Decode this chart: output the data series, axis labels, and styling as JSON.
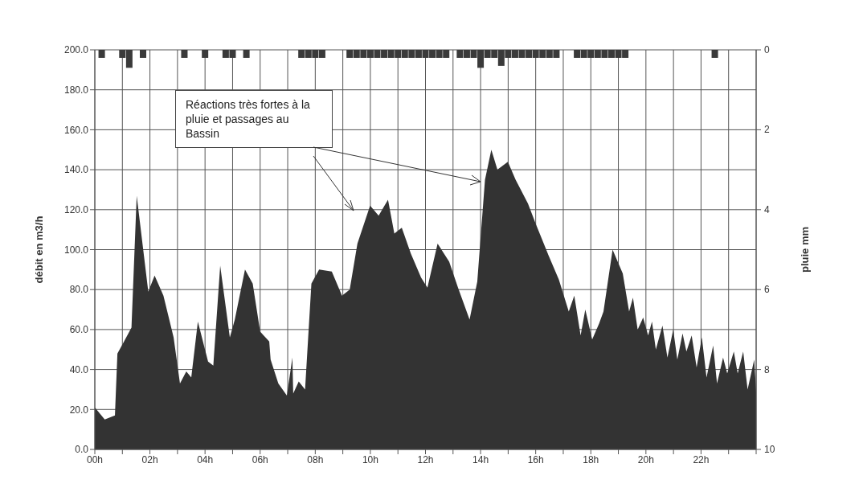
{
  "chart_data": {
    "type": "area",
    "ylabel": "débit en m3/h",
    "y2label": "pluie mm",
    "annotations": [
      "Réactions très fortes à la pluie et passages au Bassin"
    ],
    "xlim": [
      0,
      24
    ],
    "xticks": [
      {
        "value": 0,
        "label": "00h"
      },
      {
        "value": 1,
        "label": null
      },
      {
        "value": 2,
        "label": "02h"
      },
      {
        "value": 3,
        "label": null
      },
      {
        "value": 4,
        "label": "04h"
      },
      {
        "value": 5,
        "label": null
      },
      {
        "value": 6,
        "label": "06h"
      },
      {
        "value": 7,
        "label": null
      },
      {
        "value": 8,
        "label": "08h"
      },
      {
        "value": 9,
        "label": null
      },
      {
        "value": 10,
        "label": "10h"
      },
      {
        "value": 11,
        "label": null
      },
      {
        "value": 12,
        "label": "12h"
      },
      {
        "value": 13,
        "label": null
      },
      {
        "value": 14,
        "label": "14h"
      },
      {
        "value": 15,
        "label": null
      },
      {
        "value": 16,
        "label": "16h"
      },
      {
        "value": 17,
        "label": null
      },
      {
        "value": 18,
        "label": "18h"
      },
      {
        "value": 19,
        "label": null
      },
      {
        "value": 20,
        "label": "20h"
      },
      {
        "value": 21,
        "label": null
      },
      {
        "value": 22,
        "label": "22h"
      },
      {
        "value": 23,
        "label": null
      },
      {
        "value": 24,
        "label": null
      }
    ],
    "ylim": [
      0,
      200
    ],
    "yticks": [
      {
        "value": 0,
        "label": "0.0"
      },
      {
        "value": 20,
        "label": "20.0"
      },
      {
        "value": 40,
        "label": "40.0"
      },
      {
        "value": 60,
        "label": "60.0"
      },
      {
        "value": 80,
        "label": "80.0"
      },
      {
        "value": 100,
        "label": "100.0"
      },
      {
        "value": 120,
        "label": "120.0"
      },
      {
        "value": 140,
        "label": "140.0"
      },
      {
        "value": 160,
        "label": "160.0"
      },
      {
        "value": 180,
        "label": "180.0"
      },
      {
        "value": 200,
        "label": "200.0"
      }
    ],
    "y2lim": [
      10,
      0
    ],
    "y2ticks": [
      0,
      2,
      4,
      6,
      8,
      10
    ],
    "grid": true,
    "series": [
      {
        "color": "#333333",
        "x": [
          0,
          0.36,
          0.73,
          0.82,
          1.06,
          1.33,
          1.52,
          1.94,
          2.17,
          2.49,
          2.86,
          3.09,
          3.32,
          3.5,
          3.74,
          4.11,
          4.3,
          4.55,
          4.9,
          5.08,
          5.45,
          5.73,
          6.0,
          6.33,
          6.38,
          6.66,
          6.97,
          7.17,
          7.2,
          7.4,
          7.63,
          7.86,
          8.14,
          8.6,
          8.97,
          9.25,
          9.53,
          9.99,
          10.3,
          10.64,
          10.87,
          11.14,
          11.47,
          11.84,
          12.07,
          12.44,
          12.86,
          13.18,
          13.6,
          13.88,
          14.16,
          14.39,
          14.61,
          14.99,
          15.27,
          15.72,
          16.0,
          16.47,
          16.84,
          17.2,
          17.4,
          17.63,
          17.8,
          18.05,
          18.3,
          18.46,
          18.79,
          19.16,
          19.39,
          19.53,
          19.7,
          19.9,
          20.08,
          20.22,
          20.36,
          20.6,
          20.78,
          20.99,
          21.14,
          21.33,
          21.47,
          21.66,
          21.84,
          22.03,
          22.2,
          22.44,
          22.58,
          22.8,
          22.95,
          23.19,
          23.33,
          23.53,
          23.69,
          23.93,
          24
        ],
        "values": [
          21,
          15,
          17,
          48,
          54,
          61,
          127,
          79,
          87,
          77,
          56,
          33,
          39,
          36,
          64,
          44,
          42,
          92,
          56,
          65,
          90,
          83,
          59,
          54,
          45,
          33,
          27,
          46,
          28,
          34,
          30,
          83,
          90,
          89,
          77,
          80,
          103,
          122,
          117,
          125,
          108,
          111,
          98,
          86,
          81,
          103,
          94,
          81,
          65,
          84,
          135,
          150,
          140,
          144,
          135,
          123,
          113,
          97,
          85,
          69,
          77,
          57,
          70,
          55,
          63,
          69,
          100,
          88,
          69,
          76,
          60,
          66,
          57,
          64,
          50,
          62,
          46,
          60,
          45,
          58,
          49,
          57,
          41,
          56,
          36,
          52,
          33,
          46,
          38,
          49,
          38,
          49,
          30,
          45,
          29
        ]
      },
      {
        "type": "bar",
        "axis": "y2",
        "color": "#3a3a3a",
        "x": [
          0.25,
          1.0,
          1.25,
          1.75,
          3.25,
          4.0,
          4.75,
          5.0,
          5.5,
          7.5,
          7.75,
          8.0,
          8.25,
          9.25,
          9.5,
          9.75,
          10.0,
          10.25,
          10.5,
          10.75,
          11.0,
          11.25,
          11.5,
          11.75,
          12.0,
          12.25,
          12.5,
          12.75,
          13.25,
          13.5,
          13.75,
          14.0,
          14.25,
          14.5,
          14.75,
          15.0,
          15.25,
          15.5,
          15.75,
          16.0,
          16.25,
          16.5,
          16.75,
          17.5,
          17.75,
          18.0,
          18.25,
          18.5,
          18.75,
          19.0,
          19.25,
          22.5
        ],
        "values": [
          0.2,
          0.2,
          0.45,
          0.2,
          0.2,
          0.2,
          0.2,
          0.2,
          0.2,
          0.2,
          0.2,
          0.2,
          0.2,
          0.2,
          0.2,
          0.2,
          0.2,
          0.2,
          0.2,
          0.2,
          0.2,
          0.2,
          0.2,
          0.2,
          0.2,
          0.2,
          0.2,
          0.2,
          0.2,
          0.2,
          0.2,
          0.45,
          0.2,
          0.2,
          0.4,
          0.2,
          0.2,
          0.2,
          0.2,
          0.2,
          0.2,
          0.2,
          0.2,
          0.2,
          0.2,
          0.2,
          0.2,
          0.2,
          0.2,
          0.2,
          0.2,
          0.2
        ]
      }
    ]
  }
}
